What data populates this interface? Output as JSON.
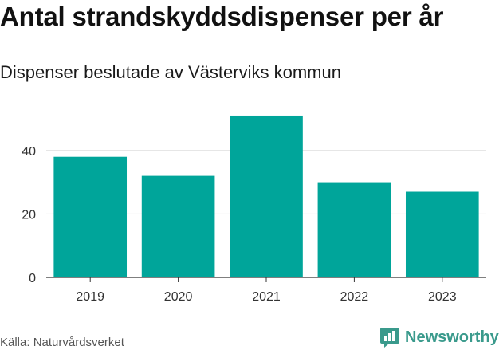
{
  "header": {
    "title": "Antal strandskyddsdispenser per år",
    "subtitle": "Dispenser beslutade av Västerviks kommun"
  },
  "footer": {
    "source": "Källa: Naturvårdsverket",
    "brand": "Newsworthy"
  },
  "colors": {
    "bar": "#00a59a",
    "grid": "#dddddd",
    "axis": "#333333",
    "brand": "#3a9a8c"
  },
  "chart_data": {
    "type": "bar",
    "categories": [
      "2019",
      "2020",
      "2021",
      "2022",
      "2023"
    ],
    "values": [
      38,
      32,
      51,
      30,
      27
    ],
    "ylim": [
      0,
      53
    ],
    "yticks": [
      0,
      20,
      40
    ],
    "grid": true,
    "legend": "none"
  }
}
